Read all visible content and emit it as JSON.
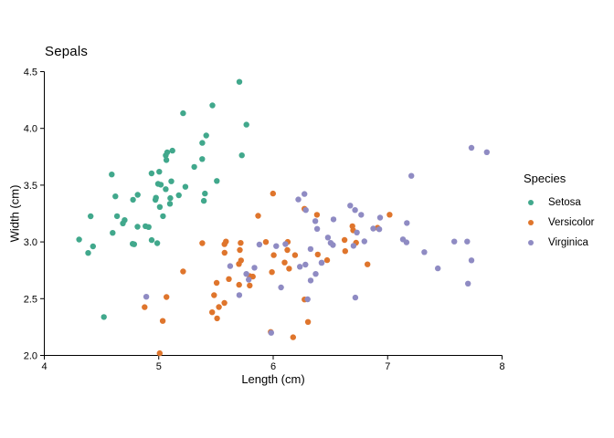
{
  "chart_data": {
    "type": "scatter",
    "title": "Sepals",
    "xlabel": "Length (cm)",
    "ylabel": "Width (cm)",
    "legend_title": "Species",
    "xlim": [
      4,
      8
    ],
    "ylim": [
      2.0,
      4.5
    ],
    "xticks": [
      {
        "value": 4,
        "label": "4"
      },
      {
        "value": 5,
        "label": "5"
      },
      {
        "value": 6,
        "label": "6"
      },
      {
        "value": 7,
        "label": "7"
      },
      {
        "value": 8,
        "label": "8"
      }
    ],
    "yticks": [
      {
        "value": 2.0,
        "label": "2.0"
      },
      {
        "value": 2.5,
        "label": "2.5"
      },
      {
        "value": 3.0,
        "label": "3.0"
      },
      {
        "value": 3.5,
        "label": "3.5"
      },
      {
        "value": 4.0,
        "label": "4.0"
      },
      {
        "value": 4.5,
        "label": "4.5"
      }
    ],
    "grid": false,
    "legend_position": "right",
    "marker_radius_px": 3.2,
    "jitter": 0.04,
    "axis_color": "#000000",
    "text_color": "#000000",
    "background": "#ffffff",
    "series": [
      {
        "name": "Setosa",
        "color": "#41a88c",
        "points": [
          [
            5.1,
            3.5
          ],
          [
            4.9,
            3.0
          ],
          [
            4.7,
            3.2
          ],
          [
            4.6,
            3.1
          ],
          [
            5.0,
            3.6
          ],
          [
            5.4,
            3.9
          ],
          [
            4.6,
            3.4
          ],
          [
            5.0,
            3.4
          ],
          [
            4.4,
            2.9
          ],
          [
            4.9,
            3.1
          ],
          [
            5.4,
            3.7
          ],
          [
            4.8,
            3.4
          ],
          [
            4.8,
            3.0
          ],
          [
            4.3,
            3.0
          ],
          [
            5.8,
            4.0
          ],
          [
            5.7,
            4.4
          ],
          [
            5.4,
            3.9
          ],
          [
            5.1,
            3.5
          ],
          [
            5.7,
            3.8
          ],
          [
            5.1,
            3.8
          ],
          [
            5.4,
            3.4
          ],
          [
            5.1,
            3.7
          ],
          [
            4.6,
            3.6
          ],
          [
            5.1,
            3.3
          ],
          [
            4.8,
            3.4
          ],
          [
            5.0,
            3.0
          ],
          [
            5.0,
            3.4
          ],
          [
            5.2,
            3.5
          ],
          [
            5.2,
            3.4
          ],
          [
            4.7,
            3.2
          ],
          [
            4.8,
            3.1
          ],
          [
            5.4,
            3.4
          ],
          [
            5.2,
            4.1
          ],
          [
            5.5,
            4.2
          ],
          [
            4.9,
            3.1
          ],
          [
            5.0,
            3.2
          ],
          [
            5.5,
            3.5
          ],
          [
            4.9,
            3.6
          ],
          [
            4.4,
            3.0
          ],
          [
            5.1,
            3.4
          ],
          [
            5.0,
            3.5
          ],
          [
            4.5,
            2.3
          ],
          [
            4.4,
            3.2
          ],
          [
            5.0,
            3.5
          ],
          [
            5.1,
            3.8
          ],
          [
            4.8,
            3.0
          ],
          [
            5.1,
            3.8
          ],
          [
            4.6,
            3.2
          ],
          [
            5.3,
            3.7
          ],
          [
            5.0,
            3.3
          ]
        ]
      },
      {
        "name": "Versicolor",
        "color": "#df752c",
        "points": [
          [
            7.0,
            3.2
          ],
          [
            6.4,
            3.2
          ],
          [
            6.9,
            3.1
          ],
          [
            5.5,
            2.3
          ],
          [
            6.5,
            2.8
          ],
          [
            5.7,
            2.8
          ],
          [
            6.3,
            3.3
          ],
          [
            4.9,
            2.4
          ],
          [
            6.6,
            2.9
          ],
          [
            5.2,
            2.7
          ],
          [
            5.0,
            2.0
          ],
          [
            5.9,
            3.0
          ],
          [
            6.0,
            2.2
          ],
          [
            6.1,
            2.9
          ],
          [
            5.6,
            2.9
          ],
          [
            6.7,
            3.1
          ],
          [
            5.6,
            3.0
          ],
          [
            5.8,
            2.7
          ],
          [
            6.2,
            2.2
          ],
          [
            5.6,
            2.5
          ],
          [
            5.9,
            3.2
          ],
          [
            6.1,
            2.8
          ],
          [
            6.3,
            2.5
          ],
          [
            6.1,
            2.8
          ],
          [
            6.4,
            2.9
          ],
          [
            6.6,
            3.0
          ],
          [
            6.8,
            2.8
          ],
          [
            6.7,
            3.0
          ],
          [
            6.0,
            2.9
          ],
          [
            5.7,
            2.6
          ],
          [
            5.5,
            2.4
          ],
          [
            5.5,
            2.4
          ],
          [
            5.8,
            2.7
          ],
          [
            6.0,
            2.7
          ],
          [
            5.4,
            3.0
          ],
          [
            6.0,
            3.4
          ],
          [
            6.7,
            3.1
          ],
          [
            6.3,
            2.3
          ],
          [
            5.6,
            3.0
          ],
          [
            5.5,
            2.5
          ],
          [
            5.5,
            2.6
          ],
          [
            6.1,
            3.0
          ],
          [
            5.8,
            2.6
          ],
          [
            5.0,
            2.3
          ],
          [
            5.6,
            2.7
          ],
          [
            5.7,
            3.0
          ],
          [
            5.7,
            2.9
          ],
          [
            6.2,
            2.9
          ],
          [
            5.1,
            2.5
          ],
          [
            5.7,
            2.8
          ]
        ]
      },
      {
        "name": "Virginica",
        "color": "#8f8bc3",
        "points": [
          [
            6.3,
            3.3
          ],
          [
            5.8,
            2.7
          ],
          [
            7.1,
            3.0
          ],
          [
            6.3,
            2.9
          ],
          [
            6.5,
            3.0
          ],
          [
            7.6,
            3.0
          ],
          [
            4.9,
            2.5
          ],
          [
            7.3,
            2.9
          ],
          [
            6.7,
            2.5
          ],
          [
            7.2,
            3.6
          ],
          [
            6.5,
            3.2
          ],
          [
            6.4,
            2.7
          ],
          [
            6.8,
            3.0
          ],
          [
            5.7,
            2.5
          ],
          [
            5.8,
            2.8
          ],
          [
            6.4,
            3.2
          ],
          [
            6.5,
            3.0
          ],
          [
            7.7,
            3.8
          ],
          [
            7.7,
            2.6
          ],
          [
            6.0,
            2.2
          ],
          [
            6.9,
            3.2
          ],
          [
            5.6,
            2.8
          ],
          [
            7.7,
            2.8
          ],
          [
            6.3,
            2.7
          ],
          [
            6.7,
            3.3
          ],
          [
            7.2,
            3.2
          ],
          [
            6.2,
            2.8
          ],
          [
            6.1,
            3.0
          ],
          [
            6.4,
            2.8
          ],
          [
            7.2,
            3.0
          ],
          [
            7.4,
            2.8
          ],
          [
            7.9,
            3.8
          ],
          [
            6.4,
            2.8
          ],
          [
            6.3,
            2.8
          ],
          [
            6.1,
            2.6
          ],
          [
            7.7,
            3.0
          ],
          [
            6.3,
            3.4
          ],
          [
            6.4,
            3.1
          ],
          [
            6.0,
            3.0
          ],
          [
            6.9,
            3.1
          ],
          [
            6.7,
            3.1
          ],
          [
            6.9,
            3.1
          ],
          [
            5.8,
            2.7
          ],
          [
            6.8,
            3.2
          ],
          [
            6.7,
            3.3
          ],
          [
            6.7,
            3.0
          ],
          [
            6.3,
            2.5
          ],
          [
            6.5,
            3.0
          ],
          [
            6.2,
            3.4
          ],
          [
            5.9,
            3.0
          ]
        ]
      }
    ]
  }
}
